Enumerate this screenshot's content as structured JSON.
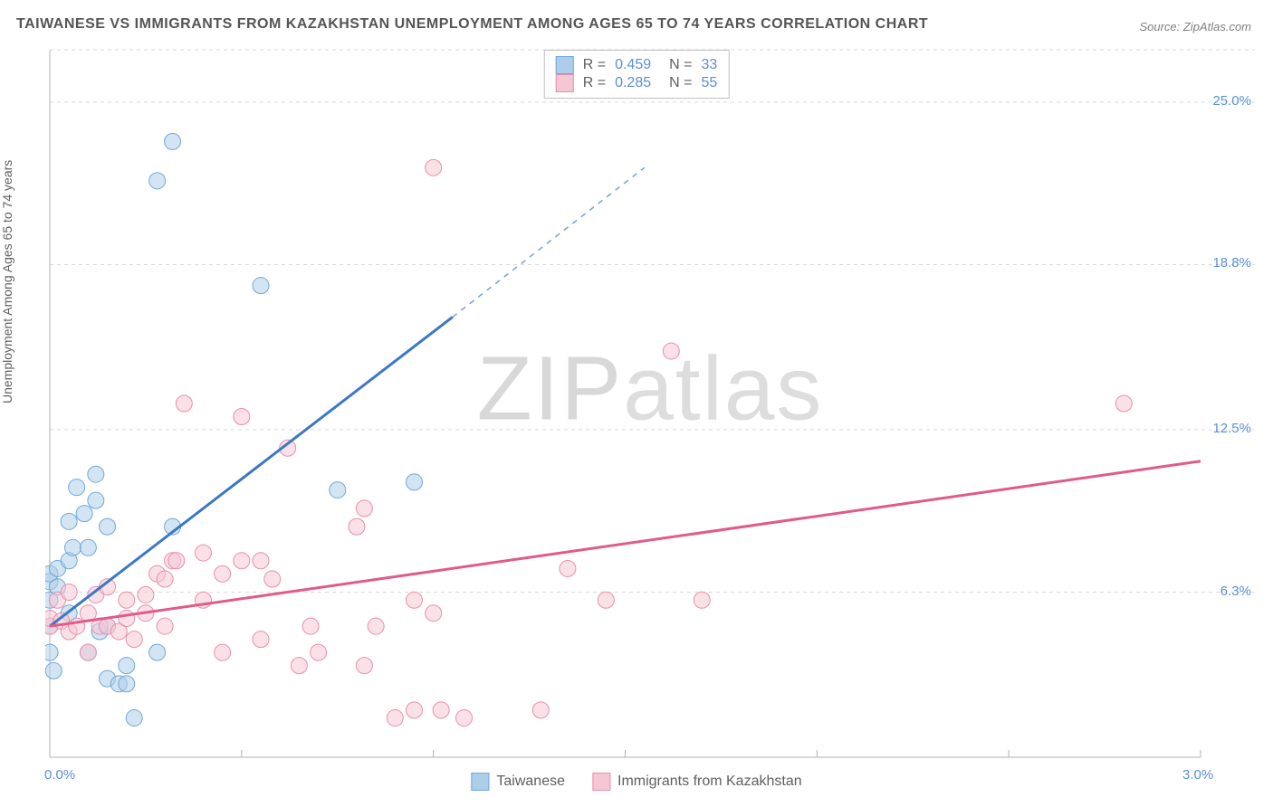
{
  "title": "TAIWANESE VS IMMIGRANTS FROM KAZAKHSTAN UNEMPLOYMENT AMONG AGES 65 TO 74 YEARS CORRELATION CHART",
  "source": "Source: ZipAtlas.com",
  "watermark_a": "ZIP",
  "watermark_b": "atlas",
  "y_label": "Unemployment Among Ages 65 to 74 years",
  "chart": {
    "type": "scatter",
    "background_color": "#ffffff",
    "grid_color": "#d9d9d9",
    "axis_color": "#b0b0b0",
    "tick_color": "#5b8fd6",
    "xlim": [
      0.0,
      3.0
    ],
    "ylim": [
      0.0,
      27.0
    ],
    "x_ticks": [
      0.0,
      3.0
    ],
    "x_tick_labels": [
      "0.0%",
      "3.0%"
    ],
    "y_ticks": [
      6.3,
      12.5,
      18.8,
      25.0
    ],
    "y_tick_labels": [
      "6.3%",
      "12.5%",
      "18.8%",
      "25.0%"
    ],
    "x_gridlines": [
      0.5,
      1.0,
      1.5,
      2.0,
      2.5,
      3.0
    ],
    "marker_radius": 9,
    "marker_opacity": 0.55,
    "line_width": 3,
    "title_fontsize": 16,
    "label_fontsize": 14
  },
  "series": [
    {
      "name": "Taiwanese",
      "color_fill": "#aecde9",
      "color_stroke": "#6fa8dc",
      "line_color": "#3b78c4",
      "R": "0.459",
      "N": "33",
      "trend": {
        "x1": 0.0,
        "y1": 5.0,
        "x2": 1.05,
        "y2": 16.8,
        "dash_x2": 1.55,
        "dash_y2": 22.5
      },
      "points": [
        [
          0.0,
          4.0
        ],
        [
          0.0,
          5.0
        ],
        [
          0.0,
          6.0
        ],
        [
          0.0,
          6.7
        ],
        [
          0.0,
          7.0
        ],
        [
          0.01,
          3.3
        ],
        [
          0.02,
          7.2
        ],
        [
          0.02,
          6.5
        ],
        [
          0.05,
          5.5
        ],
        [
          0.05,
          7.5
        ],
        [
          0.05,
          9.0
        ],
        [
          0.06,
          8.0
        ],
        [
          0.07,
          10.3
        ],
        [
          0.09,
          9.3
        ],
        [
          0.1,
          8.0
        ],
        [
          0.1,
          4.0
        ],
        [
          0.12,
          9.8
        ],
        [
          0.12,
          10.8
        ],
        [
          0.13,
          4.8
        ],
        [
          0.15,
          8.8
        ],
        [
          0.15,
          3.0
        ],
        [
          0.15,
          5.0
        ],
        [
          0.18,
          2.8
        ],
        [
          0.2,
          2.8
        ],
        [
          0.2,
          3.5
        ],
        [
          0.22,
          1.5
        ],
        [
          0.28,
          4.0
        ],
        [
          0.28,
          22.0
        ],
        [
          0.32,
          23.5
        ],
        [
          0.32,
          8.8
        ],
        [
          0.55,
          18.0
        ],
        [
          0.75,
          10.2
        ],
        [
          0.95,
          10.5
        ]
      ]
    },
    {
      "name": "Immigrants from Kazakhstan",
      "color_fill": "#f5c6d3",
      "color_stroke": "#e98fab",
      "line_color": "#e05a8a",
      "R": "0.285",
      "N": "55",
      "trend": {
        "x1": 0.0,
        "y1": 5.0,
        "x2": 3.0,
        "y2": 11.3
      },
      "points": [
        [
          0.0,
          5.0
        ],
        [
          0.0,
          5.3
        ],
        [
          0.02,
          6.0
        ],
        [
          0.03,
          5.2
        ],
        [
          0.05,
          4.8
        ],
        [
          0.05,
          6.3
        ],
        [
          0.07,
          5.0
        ],
        [
          0.1,
          4.0
        ],
        [
          0.1,
          5.5
        ],
        [
          0.12,
          6.2
        ],
        [
          0.13,
          5.0
        ],
        [
          0.15,
          5.0
        ],
        [
          0.15,
          6.5
        ],
        [
          0.18,
          4.8
        ],
        [
          0.2,
          6.0
        ],
        [
          0.2,
          5.3
        ],
        [
          0.22,
          4.5
        ],
        [
          0.25,
          5.5
        ],
        [
          0.25,
          6.2
        ],
        [
          0.28,
          7.0
        ],
        [
          0.3,
          5.0
        ],
        [
          0.3,
          6.8
        ],
        [
          0.32,
          7.5
        ],
        [
          0.33,
          7.5
        ],
        [
          0.35,
          13.5
        ],
        [
          0.4,
          6.0
        ],
        [
          0.4,
          7.8
        ],
        [
          0.45,
          4.0
        ],
        [
          0.45,
          7.0
        ],
        [
          0.5,
          7.5
        ],
        [
          0.5,
          13.0
        ],
        [
          0.55,
          7.5
        ],
        [
          0.55,
          4.5
        ],
        [
          0.58,
          6.8
        ],
        [
          0.62,
          11.8
        ],
        [
          0.65,
          3.5
        ],
        [
          0.68,
          5.0
        ],
        [
          0.7,
          4.0
        ],
        [
          0.8,
          8.8
        ],
        [
          0.82,
          3.5
        ],
        [
          0.82,
          9.5
        ],
        [
          0.85,
          5.0
        ],
        [
          0.9,
          1.5
        ],
        [
          0.95,
          6.0
        ],
        [
          0.95,
          1.8
        ],
        [
          1.0,
          22.5
        ],
        [
          1.0,
          5.5
        ],
        [
          1.02,
          1.8
        ],
        [
          1.08,
          1.5
        ],
        [
          1.28,
          1.8
        ],
        [
          1.35,
          7.2
        ],
        [
          1.45,
          6.0
        ],
        [
          1.62,
          15.5
        ],
        [
          1.7,
          6.0
        ],
        [
          2.8,
          13.5
        ]
      ]
    }
  ],
  "legend_bottom": [
    "Taiwanese",
    "Immigrants from Kazakhstan"
  ]
}
